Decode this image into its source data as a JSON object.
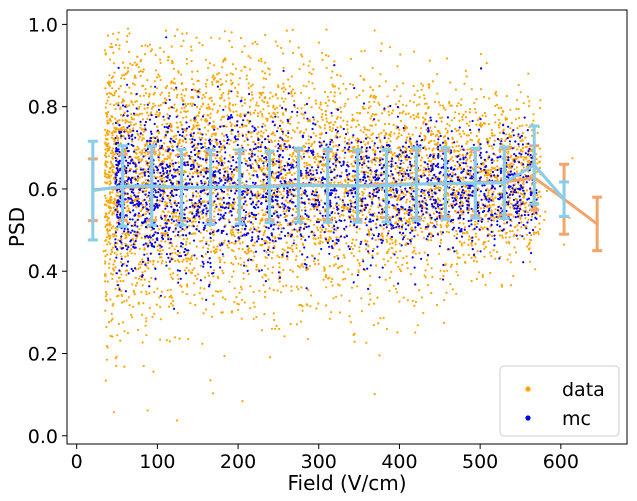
{
  "chart_data": {
    "type": "scatter",
    "xlabel": "Field (V/cm)",
    "ylabel": "PSD",
    "xlim": [
      -12,
      682
    ],
    "ylim": [
      -0.02,
      1.035
    ],
    "x_ticks": [
      {
        "v": 0,
        "label": "0"
      },
      {
        "v": 100,
        "label": "100"
      },
      {
        "v": 200,
        "label": "200"
      },
      {
        "v": 300,
        "label": "300"
      },
      {
        "v": 400,
        "label": "400"
      },
      {
        "v": 500,
        "label": "500"
      },
      {
        "v": 600,
        "label": "600"
      }
    ],
    "y_ticks": [
      {
        "v": 0.0,
        "label": "0.0"
      },
      {
        "v": 0.2,
        "label": "0.2"
      },
      {
        "v": 0.4,
        "label": "0.4"
      },
      {
        "v": 0.6,
        "label": "0.6"
      },
      {
        "v": 0.8,
        "label": "0.8"
      },
      {
        "v": 1.0,
        "label": "1.0"
      }
    ],
    "legend": {
      "placement": "lower-right",
      "entries": [
        "data",
        "mc"
      ]
    },
    "colors": {
      "data_points": "#ffa500",
      "mc_points": "#0000ee",
      "data_profile": "#f4a46a",
      "mc_profile": "#87ceeb"
    },
    "scatter_clouds": [
      {
        "name": "data",
        "count": 5200,
        "x_range": [
          35,
          575
        ],
        "y_center": 0.62,
        "y_spread": 0.18,
        "outlier_x_range": [
          20,
          620
        ]
      },
      {
        "name": "mc",
        "count": 2600,
        "x_range": [
          48,
          570
        ],
        "y_center": 0.6,
        "y_spread": 0.11
      }
    ],
    "series": [
      {
        "name": "data",
        "x": [
          20,
          57,
          93,
          130,
          166,
          202,
          239,
          275,
          311,
          348,
          384,
          421,
          457,
          494,
          530,
          567,
          604,
          645
        ],
        "y": [
          0.598,
          0.604,
          0.606,
          0.603,
          0.603,
          0.606,
          0.607,
          0.611,
          0.609,
          0.608,
          0.612,
          0.612,
          0.613,
          0.615,
          0.617,
          0.627,
          0.575,
          0.515
        ],
        "err": [
          0.075,
          0.08,
          0.083,
          0.08,
          0.08,
          0.08,
          0.082,
          0.083,
          0.083,
          0.082,
          0.082,
          0.082,
          0.08,
          0.08,
          0.08,
          0.078,
          0.085,
          0.065
        ]
      },
      {
        "name": "mc",
        "x": [
          20,
          57,
          93,
          130,
          166,
          202,
          239,
          275,
          311,
          348,
          384,
          421,
          457,
          494,
          530,
          567,
          604
        ],
        "y": [
          0.596,
          0.607,
          0.608,
          0.604,
          0.604,
          0.605,
          0.605,
          0.609,
          0.608,
          0.607,
          0.608,
          0.612,
          0.613,
          0.614,
          0.615,
          0.658,
          0.575
        ],
        "err": [
          0.12,
          0.098,
          0.096,
          0.092,
          0.09,
          0.09,
          0.087,
          0.09,
          0.089,
          0.088,
          0.088,
          0.088,
          0.087,
          0.085,
          0.087,
          0.095,
          0.042
        ]
      }
    ]
  }
}
